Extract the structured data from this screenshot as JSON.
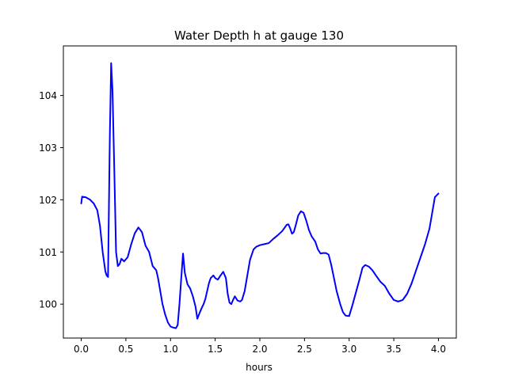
{
  "chart_data": {
    "type": "line",
    "title": "Water Depth h at gauge 130",
    "xlabel": "hours",
    "ylabel": "",
    "xlim": [
      -0.2,
      4.2
    ],
    "ylim": [
      99.35,
      104.95
    ],
    "xticks": [
      0.0,
      0.5,
      1.0,
      1.5,
      2.0,
      2.5,
      3.0,
      3.5,
      4.0
    ],
    "xtick_labels": [
      "0.0",
      "0.5",
      "1.0",
      "1.5",
      "2.0",
      "2.5",
      "3.0",
      "3.5",
      "4.0"
    ],
    "yticks": [
      100,
      101,
      102,
      103,
      104
    ],
    "ytick_labels": [
      "100",
      "101",
      "102",
      "103",
      "104"
    ],
    "grid": false,
    "legend": "none",
    "series": [
      {
        "color": "#0000ff",
        "x": [
          0.0,
          0.01,
          0.05,
          0.1,
          0.14,
          0.18,
          0.21,
          0.24,
          0.27,
          0.285,
          0.3,
          0.32,
          0.335,
          0.35,
          0.37,
          0.39,
          0.41,
          0.43,
          0.45,
          0.48,
          0.52,
          0.56,
          0.6,
          0.64,
          0.68,
          0.72,
          0.76,
          0.8,
          0.84,
          0.86,
          0.88,
          0.91,
          0.94,
          0.97,
          1.0,
          1.03,
          1.06,
          1.08,
          1.1,
          1.12,
          1.14,
          1.16,
          1.19,
          1.22,
          1.25,
          1.28,
          1.3,
          1.33,
          1.35,
          1.37,
          1.39,
          1.41,
          1.43,
          1.45,
          1.48,
          1.5,
          1.53,
          1.56,
          1.59,
          1.62,
          1.64,
          1.66,
          1.68,
          1.7,
          1.72,
          1.75,
          1.78,
          1.8,
          1.83,
          1.86,
          1.89,
          1.93,
          1.96,
          2.0,
          2.05,
          2.1,
          2.15,
          2.2,
          2.25,
          2.28,
          2.3,
          2.32,
          2.34,
          2.36,
          2.38,
          2.4,
          2.43,
          2.46,
          2.49,
          2.52,
          2.55,
          2.58,
          2.62,
          2.65,
          2.68,
          2.71,
          2.74,
          2.77,
          2.8,
          2.83,
          2.86,
          2.9,
          2.93,
          2.96,
          3.0,
          3.04,
          3.08,
          3.12,
          3.15,
          3.18,
          3.22,
          3.26,
          3.3,
          3.35,
          3.4,
          3.45,
          3.5,
          3.55,
          3.6,
          3.65,
          3.7,
          3.75,
          3.8,
          3.85,
          3.9,
          3.93,
          3.96,
          4.0
        ],
        "y": [
          101.93,
          102.06,
          102.05,
          102.0,
          101.93,
          101.8,
          101.5,
          101.0,
          100.63,
          100.55,
          100.52,
          103.2,
          104.62,
          104.1,
          102.6,
          101.0,
          100.73,
          100.77,
          100.87,
          100.82,
          100.9,
          101.15,
          101.36,
          101.47,
          101.38,
          101.12,
          101.0,
          100.73,
          100.65,
          100.5,
          100.3,
          100.0,
          99.8,
          99.65,
          99.57,
          99.55,
          99.54,
          99.6,
          100.0,
          100.5,
          100.97,
          100.6,
          100.38,
          100.3,
          100.15,
          99.95,
          99.72,
          99.85,
          99.93,
          100.0,
          100.1,
          100.25,
          100.4,
          100.5,
          100.55,
          100.5,
          100.47,
          100.55,
          100.62,
          100.5,
          100.2,
          100.03,
          100.0,
          100.08,
          100.15,
          100.07,
          100.05,
          100.08,
          100.25,
          100.55,
          100.85,
          101.05,
          101.1,
          101.13,
          101.15,
          101.17,
          101.25,
          101.32,
          101.4,
          101.47,
          101.52,
          101.53,
          101.45,
          101.35,
          101.38,
          101.5,
          101.7,
          101.78,
          101.75,
          101.6,
          101.42,
          101.3,
          101.2,
          101.05,
          100.97,
          100.98,
          100.98,
          100.95,
          100.75,
          100.5,
          100.25,
          100.0,
          99.85,
          99.78,
          99.77,
          100.0,
          100.25,
          100.5,
          100.7,
          100.75,
          100.72,
          100.65,
          100.55,
          100.43,
          100.35,
          100.2,
          100.08,
          100.05,
          100.08,
          100.2,
          100.4,
          100.65,
          100.9,
          101.15,
          101.45,
          101.75,
          102.05,
          102.12
        ]
      }
    ]
  }
}
